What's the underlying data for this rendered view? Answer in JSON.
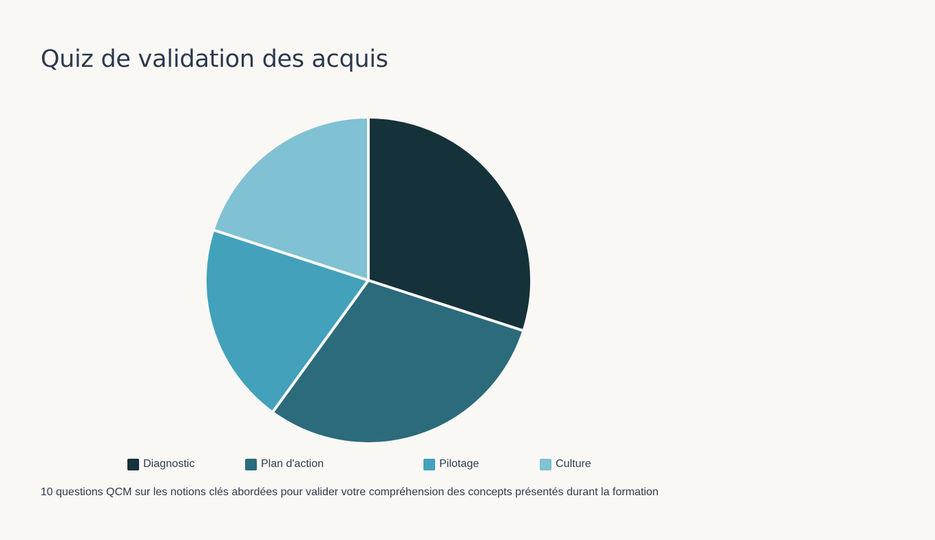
{
  "chart_data": {
    "type": "pie",
    "title": "Quiz de validation des acquis",
    "subtitle": "10 questions QCM sur les notions clés abordées pour valider votre compréhension des concepts présentés durant la formation",
    "categories": [
      "Diagnostic",
      "Plan d'action",
      "Pilotage",
      "Culture"
    ],
    "values": [
      3,
      3,
      2,
      2
    ],
    "colors": [
      "#15313a",
      "#2b6b7b",
      "#43a1bb",
      "#80c1d3"
    ],
    "legend": {
      "position": "bottom",
      "items": [
        "Diagnostic",
        "Plan d'action",
        "Pilotage",
        "Culture"
      ]
    }
  }
}
